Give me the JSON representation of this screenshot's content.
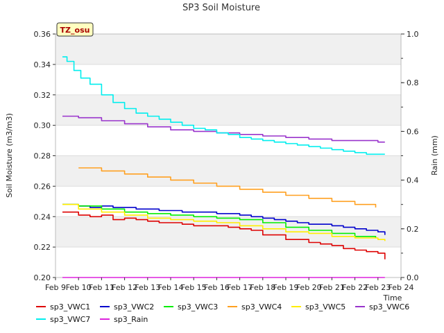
{
  "chart_data": {
    "type": "line",
    "title": "SP3 Soil Moisture",
    "xlabel": "Time",
    "ylabel": "Soil Moisture (m3/m3)",
    "y2label": "Rain (mm)",
    "station_tag": "TZ_osu",
    "x_ticks": [
      "Feb 9",
      "Feb 10",
      "Feb 11",
      "Feb 12",
      "Feb 13",
      "Feb 14",
      "Feb 15",
      "Feb 16",
      "Feb 17",
      "Feb 18",
      "Feb 19",
      "Feb 20",
      "Feb 21",
      "Feb 22",
      "Feb 23",
      "Feb 24"
    ],
    "xlim": [
      9,
      24
    ],
    "ylim": [
      0.2,
      0.36
    ],
    "y_ticks": [
      "0.20",
      "0.22",
      "0.24",
      "0.26",
      "0.28",
      "0.30",
      "0.32",
      "0.34",
      "0.36"
    ],
    "y2lim": [
      0.0,
      1.0
    ],
    "y2_ticks": [
      "0.0",
      "0.2",
      "0.4",
      "0.6",
      "0.8",
      "1.0"
    ],
    "legend_position": "bottom",
    "series": [
      {
        "name": "sp3_VWC1",
        "color": "#dd0000",
        "axis": "left",
        "x": [
          9.3,
          9.6,
          10.0,
          10.5,
          11.0,
          11.5,
          12.0,
          12.5,
          13.0,
          13.5,
          14.0,
          14.5,
          15.0,
          15.5,
          16.0,
          16.5,
          17.0,
          17.5,
          18.0,
          18.5,
          19.0,
          19.5,
          20.0,
          20.5,
          21.0,
          21.5,
          22.0,
          22.5,
          23.0,
          23.3
        ],
        "y": [
          0.243,
          0.243,
          0.241,
          0.24,
          0.241,
          0.238,
          0.239,
          0.238,
          0.237,
          0.236,
          0.236,
          0.235,
          0.234,
          0.234,
          0.234,
          0.233,
          0.232,
          0.231,
          0.228,
          0.228,
          0.225,
          0.225,
          0.223,
          0.222,
          0.221,
          0.219,
          0.218,
          0.217,
          0.216,
          0.212
        ]
      },
      {
        "name": "sp3_VWC2",
        "color": "#0000cc",
        "axis": "left",
        "x": [
          9.3,
          10.0,
          10.5,
          11.0,
          11.5,
          12.0,
          12.5,
          13.0,
          13.5,
          14.0,
          14.5,
          15.0,
          15.5,
          16.0,
          16.5,
          17.0,
          17.5,
          18.0,
          18.5,
          19.0,
          19.5,
          20.0,
          20.5,
          21.0,
          21.5,
          22.0,
          22.5,
          23.0,
          23.3
        ],
        "y": [
          0.248,
          0.247,
          0.246,
          0.247,
          0.246,
          0.246,
          0.245,
          0.245,
          0.244,
          0.244,
          0.243,
          0.243,
          0.243,
          0.242,
          0.242,
          0.241,
          0.24,
          0.239,
          0.238,
          0.237,
          0.236,
          0.235,
          0.235,
          0.234,
          0.233,
          0.232,
          0.231,
          0.23,
          0.228
        ]
      },
      {
        "name": "sp3_VWC3",
        "color": "#00ee00",
        "axis": "left",
        "x": [
          9.3,
          10.0,
          11.0,
          12.0,
          13.0,
          14.0,
          15.0,
          16.0,
          17.0,
          18.0,
          19.0,
          20.0,
          21.0,
          22.0,
          22.9
        ],
        "y": [
          0.248,
          0.247,
          0.245,
          0.243,
          0.242,
          0.241,
          0.24,
          0.239,
          0.238,
          0.236,
          0.233,
          0.231,
          0.229,
          0.227,
          0.226
        ]
      },
      {
        "name": "sp3_VWC4",
        "color": "#ffa020",
        "axis": "left",
        "x": [
          10.0,
          11.0,
          12.0,
          13.0,
          14.0,
          15.0,
          16.0,
          17.0,
          18.0,
          19.0,
          20.0,
          21.0,
          22.0,
          22.9
        ],
        "y": [
          0.272,
          0.27,
          0.268,
          0.266,
          0.264,
          0.262,
          0.26,
          0.258,
          0.256,
          0.254,
          0.252,
          0.25,
          0.248,
          0.246
        ]
      },
      {
        "name": "sp3_VWC5",
        "color": "#ffee00",
        "axis": "left",
        "x": [
          9.3,
          10.0,
          11.0,
          12.0,
          13.0,
          14.0,
          15.0,
          16.0,
          17.0,
          18.0,
          19.0,
          20.0,
          21.0,
          22.0,
          23.0,
          23.3
        ],
        "y": [
          0.248,
          0.245,
          0.243,
          0.241,
          0.239,
          0.238,
          0.237,
          0.236,
          0.234,
          0.232,
          0.23,
          0.229,
          0.227,
          0.226,
          0.225,
          0.224
        ]
      },
      {
        "name": "sp3_VWC6",
        "color": "#9933cc",
        "axis": "left",
        "x": [
          9.3,
          10.0,
          11.0,
          12.0,
          13.0,
          14.0,
          15.0,
          16.0,
          17.0,
          18.0,
          19.0,
          20.0,
          21.0,
          22.0,
          23.0,
          23.3
        ],
        "y": [
          0.306,
          0.305,
          0.303,
          0.301,
          0.299,
          0.297,
          0.296,
          0.295,
          0.294,
          0.293,
          0.292,
          0.291,
          0.29,
          0.29,
          0.289,
          0.289
        ]
      },
      {
        "name": "sp3_VWC7",
        "color": "#00eeee",
        "axis": "left",
        "x": [
          9.3,
          9.5,
          9.8,
          10.1,
          10.5,
          11.0,
          11.5,
          12.0,
          12.5,
          13.0,
          13.5,
          14.0,
          14.5,
          15.0,
          15.5,
          16.0,
          16.5,
          17.0,
          17.5,
          18.0,
          18.5,
          19.0,
          19.5,
          20.0,
          20.5,
          21.0,
          21.5,
          22.0,
          22.5,
          23.0,
          23.3
        ],
        "y": [
          0.345,
          0.342,
          0.336,
          0.331,
          0.327,
          0.32,
          0.315,
          0.311,
          0.308,
          0.306,
          0.304,
          0.302,
          0.3,
          0.298,
          0.297,
          0.295,
          0.294,
          0.292,
          0.291,
          0.29,
          0.289,
          0.288,
          0.287,
          0.286,
          0.285,
          0.284,
          0.283,
          0.282,
          0.281,
          0.281,
          0.281
        ]
      },
      {
        "name": "sp3_Rain",
        "color": "#dd22dd",
        "axis": "right",
        "x": [
          9.3,
          23.3
        ],
        "y": [
          0.0,
          0.0
        ]
      }
    ]
  }
}
